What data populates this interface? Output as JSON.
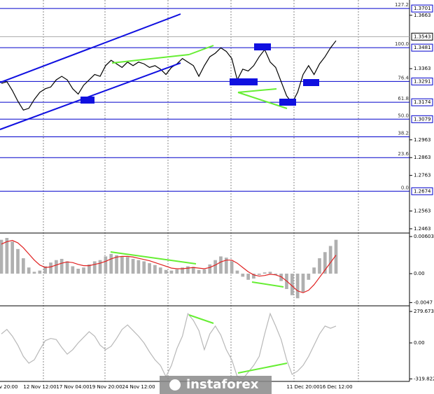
{
  "chart_data": [
    {
      "type": "line",
      "color": "#000000",
      "values": [
        1.328,
        1.329,
        1.324,
        1.318,
        1.313,
        1.314,
        1.319,
        1.323,
        1.325,
        1.326,
        1.33,
        1.332,
        1.33,
        1.325,
        1.322,
        1.327,
        1.33,
        1.333,
        1.332,
        1.338,
        1.341,
        1.339,
        1.337,
        1.34,
        1.338,
        1.34,
        1.339,
        1.337,
        1.338,
        1.336,
        1.333,
        1.337,
        1.339,
        1.342,
        1.34,
        1.338,
        1.332,
        1.338,
        1.343,
        1.345,
        1.348,
        1.346,
        1.342,
        1.33,
        1.336,
        1.335,
        1.338,
        1.343,
        1.347,
        1.34,
        1.337,
        1.329,
        1.321,
        1.317,
        1.323,
        1.333,
        1.338,
        1.333,
        1.339,
        1.343,
        1.348,
        1.352
      ],
      "ylim": [
        1.2443,
        1.3741
      ],
      "yticks": [
        1.3663,
        1.3363,
        1.2963,
        1.2863,
        1.2763,
        1.2563,
        1.2463
      ],
      "levels": [
        {
          "label": "127.2",
          "value": 1.3701,
          "boxed": true
        },
        {
          "label": "100.0",
          "value": 1.3481,
          "boxed": true
        },
        {
          "label": "76.4",
          "value": 1.3291,
          "boxed": true
        },
        {
          "label": "61.8",
          "value": 1.3174,
          "boxed": true
        },
        {
          "label": "50.0",
          "value": 1.3079,
          "boxed": true
        },
        {
          "label": "38.2",
          "value": 1.298,
          "boxed": false
        },
        {
          "label": "23.6",
          "value": 1.2863,
          "boxed": false
        },
        {
          "label": "0.0",
          "value": 1.2674,
          "boxed": true
        }
      ],
      "level_color": "#0000cc",
      "current_price": 1.3543
    },
    {
      "type": "macd",
      "histogram": {
        "color": "#b0b0b0",
        "values": [
          0.0055,
          0.0058,
          0.0052,
          0.004,
          0.0025,
          0.001,
          0.0003,
          0.0005,
          0.0012,
          0.0018,
          0.0022,
          0.0024,
          0.002,
          0.0012,
          0.0008,
          0.001,
          0.0015,
          0.002,
          0.0022,
          0.0028,
          0.0032,
          0.003,
          0.0028,
          0.0027,
          0.0024,
          0.0022,
          0.002,
          0.0017,
          0.0014,
          0.001,
          0.0006,
          0.0005,
          0.0007,
          0.001,
          0.0012,
          0.0011,
          0.0006,
          0.0007,
          0.0015,
          0.0022,
          0.0028,
          0.0026,
          0.002,
          0.0005,
          -0.0005,
          -0.001,
          -0.0008,
          -0.0002,
          0.0002,
          0.0003,
          -0.0002,
          -0.0012,
          -0.0025,
          -0.0035,
          -0.004,
          -0.003,
          -0.001,
          0.001,
          0.0025,
          0.0035,
          0.0045,
          0.0055
        ]
      },
      "signal": {
        "color": "#e02020",
        "values": [
          0.0048,
          0.0052,
          0.0054,
          0.005,
          0.0042,
          0.0032,
          0.0022,
          0.0014,
          0.001,
          0.0011,
          0.0014,
          0.0017,
          0.0019,
          0.0018,
          0.0015,
          0.0013,
          0.0013,
          0.0015,
          0.0017,
          0.002,
          0.0024,
          0.0027,
          0.0028,
          0.0028,
          0.0027,
          0.0025,
          0.0023,
          0.0021,
          0.0018,
          0.0015,
          0.0012,
          0.0009,
          0.0008,
          0.0008,
          0.0009,
          0.001,
          0.0009,
          0.0008,
          0.001,
          0.0014,
          0.0019,
          0.0022,
          0.0022,
          0.0017,
          0.001,
          0.0003,
          -0.0002,
          -0.0004,
          -0.0003,
          -0.0001,
          -0.0002,
          -0.0005,
          -0.0012,
          -0.002,
          -0.0028,
          -0.0031,
          -0.0027,
          -0.0018,
          -0.0006,
          0.0006,
          0.0018,
          0.003
        ]
      },
      "ylim": [
        -0.005,
        0.00637
      ],
      "yticks": [
        0.00603,
        {
          "value": 0,
          "label": "0.00"
        },
        -0.0047
      ]
    },
    {
      "type": "line",
      "color": "#b8b8b8",
      "values": [
        80,
        120,
        60,
        -20,
        -120,
        -180,
        -150,
        -60,
        20,
        40,
        30,
        -40,
        -100,
        -60,
        0,
        50,
        100,
        60,
        -20,
        -60,
        -30,
        40,
        120,
        160,
        110,
        60,
        0,
        -80,
        -150,
        -200,
        -300,
        -200,
        -50,
        60,
        260,
        200,
        110,
        -60,
        80,
        150,
        70,
        -60,
        -150,
        -300,
        -320,
        -260,
        -200,
        -120,
        80,
        260,
        150,
        30,
        -150,
        -280,
        -250,
        -200,
        -120,
        -20,
        80,
        150,
        130,
        150
      ],
      "ylim": [
        -342,
        311
      ],
      "yticks": [
        279.6732,
        {
          "value": 0,
          "label": "0.00"
        },
        -319.8227
      ]
    }
  ],
  "x_labels": [
    "ov 20:00",
    "12 Nov 12:00",
    "17 Nov 04:00",
    "19 Nov 20:00",
    "24 Nov 12:00",
    "11 Dec 20:00",
    "16 Dec 12:00"
  ],
  "watermark": "instaforex"
}
